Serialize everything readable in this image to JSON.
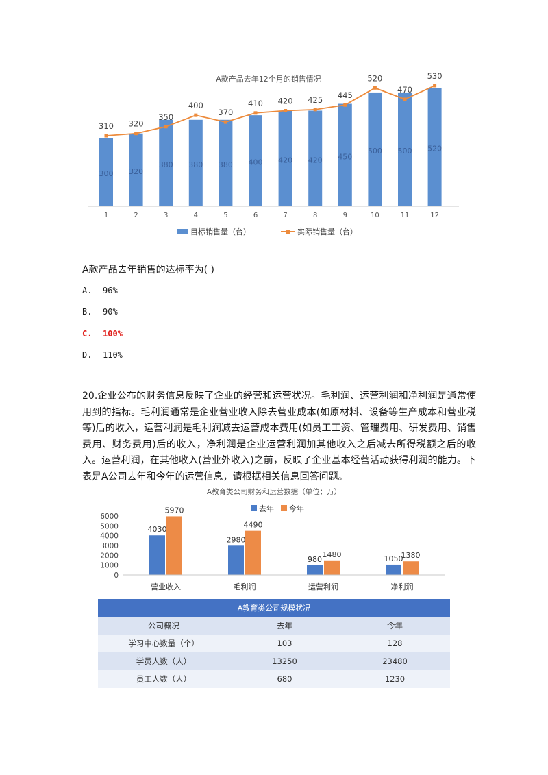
{
  "chart1": {
    "chart_data": {
      "type": "bar",
      "title": "A款产品去年12个月的销售情况",
      "categories": [
        "1",
        "2",
        "3",
        "4",
        "5",
        "6",
        "7",
        "8",
        "9",
        "10",
        "11",
        "12"
      ],
      "series": [
        {
          "name": "目标销售量（台）",
          "type": "bar",
          "values": [
            300,
            320,
            380,
            380,
            380,
            400,
            420,
            420,
            450,
            500,
            500,
            520
          ]
        },
        {
          "name": "实际销售量（台）",
          "type": "line",
          "values": [
            310,
            320,
            350,
            400,
            370,
            410,
            420,
            425,
            445,
            520,
            470,
            530
          ]
        }
      ],
      "ylim": [
        0,
        560
      ],
      "legend": "bottom",
      "colors": {
        "bar": "#5b8fd0",
        "line": "#ed8b3c"
      }
    }
  },
  "question": {
    "stem": "A款产品去年销售的达标率为(    )",
    "options": [
      {
        "key": "A.",
        "text": "96%"
      },
      {
        "key": "B.",
        "text": "90%"
      },
      {
        "key": "C.",
        "text": "100%"
      },
      {
        "key": "D.",
        "text": "110%"
      }
    ],
    "correct_color": "#e0201c"
  },
  "paragraph": "20.企业公布的财务信息反映了企业的经营和运营状况。毛利润、运营利润和净利润是通常使用到的指标。毛利润通常是企业营业收入除去营业成本(如原材料、设备等生产成本和营业税等)后的收入，运营利润是毛利润减去运营成本费用(如员工工资、管理费用、研发费用、销售费用、财务费用)后的收入，净利润是企业运营利润加其他收入之后减去所得税额之后的收入。运营利润，在其他收入(营业外收入)之前，反映了企业基本经营活动获得利润的能力。下表是A公司去年和今年的运营信息，请根据相关信息回答问题。",
  "chart2": {
    "chart_data": {
      "type": "bar",
      "title": "A教育类公司财务和运营数据（单位：万）",
      "categories": [
        "营业收入",
        "毛利润",
        "运营利润",
        "净利润"
      ],
      "series": [
        {
          "name": "去年",
          "values": [
            4030,
            2980,
            980,
            1050
          ]
        },
        {
          "name": "今年",
          "values": [
            5970,
            4490,
            1480,
            1380
          ]
        }
      ],
      "ylim": [
        0,
        6000
      ],
      "yticks": [
        "0",
        "1000",
        "2000",
        "3000",
        "4000",
        "5000",
        "6000"
      ],
      "legend": "top",
      "colors": {
        "last": "#4a7cc8",
        "this": "#ed8b47"
      }
    }
  },
  "table": {
    "caption": "A教育类公司规模状况",
    "header": [
      "公司概况",
      "去年",
      "今年"
    ],
    "rows": [
      [
        "学习中心数量（个）",
        "103",
        "128"
      ],
      [
        "学员人数（人）",
        "13250",
        "23480"
      ],
      [
        "员工人数（人）",
        "680",
        "1230"
      ]
    ]
  }
}
